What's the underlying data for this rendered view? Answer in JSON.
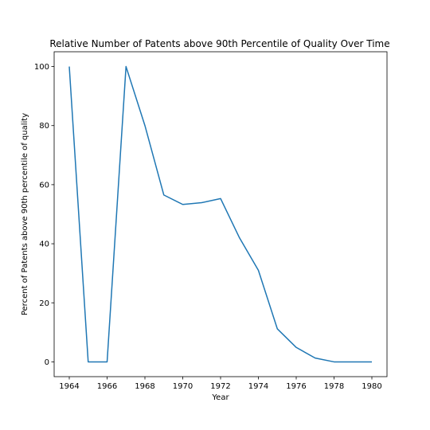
{
  "chart_data": {
    "type": "line",
    "title": "Relative Number of Patents above 90th Percentile of Quality Over Time",
    "xlabel": "Year",
    "ylabel": "Percent of Patents above 90th percentile of quality",
    "xlim": [
      1963.2,
      1980.8
    ],
    "ylim": [
      -5,
      105
    ],
    "xticks": [
      1964,
      1966,
      1968,
      1970,
      1972,
      1974,
      1976,
      1978,
      1980
    ],
    "yticks": [
      0,
      20,
      40,
      60,
      80,
      100
    ],
    "grid": false,
    "series": [
      {
        "color": "#1f77b4",
        "x": [
          1964,
          1965,
          1966,
          1967,
          1968,
          1969,
          1970,
          1971,
          1972,
          1973,
          1974,
          1975,
          1976,
          1977,
          1978,
          1979,
          1980
        ],
        "y": [
          100,
          0,
          0,
          100,
          80,
          56.5,
          53.3,
          53.9,
          55.3,
          42,
          31,
          11.2,
          4.9,
          1.3,
          0,
          0,
          0
        ]
      }
    ]
  }
}
